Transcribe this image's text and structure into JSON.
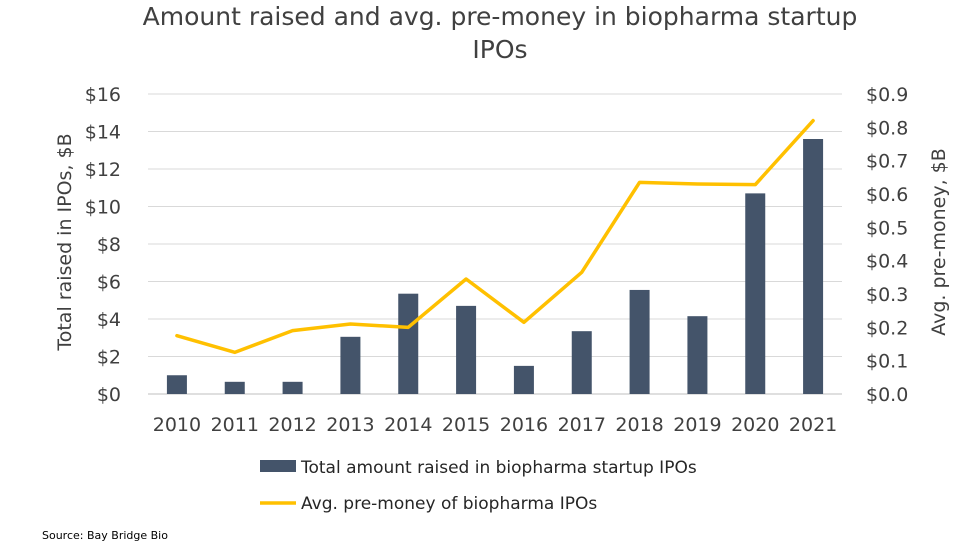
{
  "chart_data": {
    "type": "bar",
    "title_line1": "Amount raised and avg. pre-money in biopharma startup",
    "title_line2": "IPOs",
    "categories": [
      "2010",
      "2011",
      "2012",
      "2013",
      "2014",
      "2015",
      "2016",
      "2017",
      "2018",
      "2019",
      "2020",
      "2021"
    ],
    "series": [
      {
        "name": "Total amount raised in biopharma startup IPOs",
        "type": "bar",
        "axis": "left",
        "color": "#44546a",
        "values": [
          1.0,
          0.65,
          0.65,
          3.05,
          5.35,
          4.7,
          1.5,
          3.35,
          5.55,
          4.15,
          10.7,
          13.6
        ]
      },
      {
        "name": "Avg. pre-money of biopharma IPOs",
        "type": "line",
        "axis": "right",
        "color": "#ffc000",
        "values": [
          0.175,
          0.125,
          0.19,
          0.21,
          0.2,
          0.345,
          0.215,
          0.365,
          0.635,
          0.63,
          0.628,
          0.82
        ]
      }
    ],
    "y_left": {
      "label": "Total raised in IPOs, $B",
      "range": [
        0,
        16
      ],
      "ticks": [
        "$0",
        "$2",
        "$4",
        "$6",
        "$8",
        "$10",
        "$12",
        "$14",
        "$16"
      ],
      "tick_values": [
        0,
        2,
        4,
        6,
        8,
        10,
        12,
        14,
        16
      ]
    },
    "y_right": {
      "label": "Avg. pre-money, $B",
      "range": [
        0,
        0.9
      ],
      "ticks": [
        "$0.0",
        "$0.1",
        "$0.2",
        "$0.3",
        "$0.4",
        "$0.5",
        "$0.6",
        "$0.7",
        "$0.8",
        "$0.9"
      ],
      "tick_values": [
        0,
        0.1,
        0.2,
        0.3,
        0.4,
        0.5,
        0.6,
        0.7,
        0.8,
        0.9
      ]
    },
    "grid": true,
    "legend": "bottom"
  },
  "source": "Source: Bay Bridge Bio"
}
